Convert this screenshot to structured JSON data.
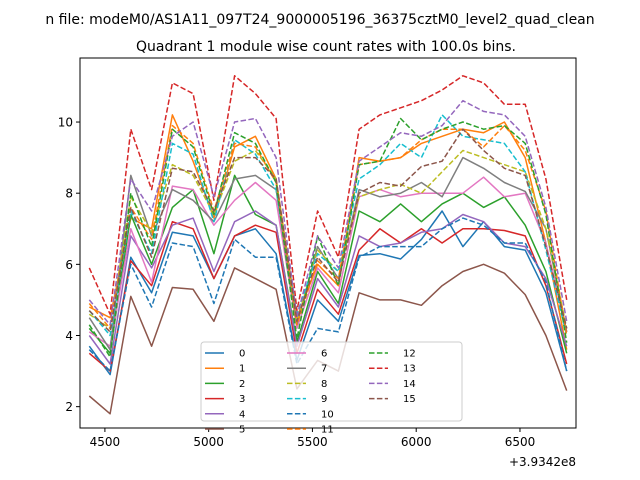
{
  "suptitle": "n file: modeM0/AS1A11_097T24_9000005196_36375cztM0_level2_quad_clean",
  "chart_data": {
    "type": "line",
    "title": "Quadrant 1 module wise count rates with 100.0s bins.",
    "xlabel": "",
    "ylabel": "",
    "x_offset_label": "+3.9342e8",
    "xlim": [
      4380,
      6770
    ],
    "ylim": [
      1.4,
      11.8
    ],
    "xticks": [
      4500,
      5000,
      5500,
      6000,
      6500
    ],
    "yticks": [
      2,
      4,
      6,
      8,
      10
    ],
    "grid": false,
    "legend_position": "bottom-center",
    "x": [
      4425,
      4525,
      4625,
      4725,
      4825,
      4925,
      5025,
      5125,
      5225,
      5325,
      5425,
      5525,
      5625,
      5725,
      5825,
      5925,
      6025,
      6125,
      6225,
      6325,
      6425,
      6525,
      6625,
      6725
    ],
    "series": [
      {
        "name": "0",
        "color": "#1f77b4",
        "dash": "solid",
        "values": [
          3.7,
          2.9,
          6.2,
          5.2,
          6.9,
          6.8,
          5.6,
          6.8,
          7.0,
          6.3,
          3.3,
          5.0,
          4.4,
          6.25,
          6.3,
          6.15,
          6.7,
          7.5,
          6.5,
          7.2,
          6.5,
          6.4,
          5.2,
          3.0
        ]
      },
      {
        "name": "1",
        "color": "#ff7f0e",
        "dash": "solid",
        "values": [
          4.8,
          4.5,
          7.3,
          7.0,
          10.2,
          8.9,
          7.3,
          9.3,
          9.6,
          8.4,
          4.5,
          6.0,
          5.4,
          9.0,
          8.9,
          9.0,
          9.4,
          9.6,
          9.8,
          9.7,
          10.0,
          9.0,
          6.6,
          3.6
        ]
      },
      {
        "name": "2",
        "color": "#2ca02c",
        "dash": "solid",
        "values": [
          4.2,
          3.5,
          7.4,
          6.0,
          7.6,
          8.1,
          6.3,
          8.5,
          7.4,
          7.1,
          3.8,
          5.8,
          4.9,
          7.5,
          7.2,
          7.7,
          7.2,
          7.7,
          8.0,
          7.6,
          7.9,
          7.1,
          5.8,
          3.5
        ]
      },
      {
        "name": "3",
        "color": "#d62728",
        "dash": "solid",
        "values": [
          3.5,
          3.0,
          6.1,
          5.4,
          7.2,
          7.0,
          5.6,
          6.8,
          7.1,
          6.9,
          3.5,
          5.3,
          4.6,
          6.4,
          7.0,
          6.6,
          7.0,
          6.6,
          7.0,
          7.0,
          6.95,
          6.8,
          5.4,
          3.2
        ]
      },
      {
        "name": "4",
        "color": "#9467bd",
        "dash": "solid",
        "values": [
          4.0,
          3.2,
          6.8,
          5.9,
          7.1,
          7.3,
          5.8,
          7.2,
          7.5,
          7.1,
          3.7,
          5.6,
          4.8,
          6.8,
          6.5,
          6.6,
          6.9,
          7.0,
          7.4,
          7.2,
          6.6,
          6.5,
          5.6,
          3.7
        ]
      },
      {
        "name": "5",
        "color": "#8c564b",
        "dash": "solid",
        "values": [
          2.3,
          1.8,
          5.1,
          3.7,
          5.35,
          5.3,
          4.4,
          5.9,
          5.6,
          5.3,
          2.5,
          3.3,
          3.0,
          5.2,
          5.0,
          5.0,
          4.85,
          5.4,
          5.8,
          6.0,
          5.75,
          5.15,
          4.0,
          2.45
        ]
      },
      {
        "name": "6",
        "color": "#e377c2",
        "dash": "solid",
        "values": [
          4.1,
          3.7,
          7.0,
          5.5,
          8.2,
          8.1,
          7.1,
          7.8,
          8.3,
          7.8,
          4.2,
          5.9,
          5.2,
          7.9,
          8.1,
          7.9,
          8.0,
          8.0,
          8.0,
          8.45,
          7.9,
          8.0,
          6.6,
          4.1
        ]
      },
      {
        "name": "7",
        "color": "#7f7f7f",
        "dash": "solid",
        "values": [
          4.5,
          3.6,
          8.5,
          6.8,
          8.1,
          7.8,
          7.2,
          8.4,
          8.5,
          8.1,
          4.3,
          6.5,
          5.6,
          8.1,
          7.9,
          8.0,
          8.3,
          7.9,
          9.0,
          8.7,
          8.3,
          8.05,
          7.0,
          4.1
        ]
      },
      {
        "name": "8",
        "color": "#bcbd22",
        "dash": "dashed",
        "values": [
          4.6,
          4.2,
          7.9,
          6.9,
          8.8,
          8.5,
          7.4,
          8.9,
          9.2,
          8.4,
          4.4,
          6.4,
          5.8,
          7.9,
          8.1,
          8.25,
          8.0,
          8.6,
          9.2,
          9.0,
          8.8,
          8.6,
          7.0,
          4.2
        ]
      },
      {
        "name": "9",
        "color": "#17becf",
        "dash": "dashed",
        "values": [
          4.7,
          4.0,
          7.5,
          6.3,
          9.4,
          9.1,
          7.2,
          9.5,
          9.1,
          8.1,
          4.6,
          6.3,
          5.8,
          8.4,
          8.8,
          9.4,
          9.0,
          10.2,
          9.6,
          9.5,
          9.4,
          8.6,
          6.4,
          4.0
        ]
      },
      {
        "name": "10",
        "color": "#1f77b4",
        "dash": "dashed",
        "values": [
          3.6,
          3.0,
          6.0,
          4.8,
          6.6,
          6.5,
          4.9,
          6.7,
          6.2,
          6.2,
          3.2,
          4.2,
          4.1,
          6.2,
          6.5,
          6.5,
          6.5,
          7.0,
          7.3,
          7.1,
          6.6,
          6.6,
          5.5,
          3.0
        ]
      },
      {
        "name": "11",
        "color": "#ff7f0e",
        "dash": "dashed",
        "values": [
          4.9,
          4.2,
          7.6,
          6.7,
          9.9,
          9.4,
          7.5,
          9.4,
          9.3,
          8.3,
          4.3,
          6.1,
          5.6,
          8.8,
          8.9,
          9.0,
          9.5,
          9.8,
          9.8,
          9.3,
          9.9,
          9.2,
          7.5,
          4.0
        ]
      },
      {
        "name": "12",
        "color": "#2ca02c",
        "dash": "dashed",
        "values": [
          4.3,
          3.4,
          8.0,
          6.5,
          9.8,
          9.3,
          7.4,
          9.7,
          9.4,
          8.3,
          3.9,
          6.8,
          5.4,
          8.8,
          8.9,
          10.1,
          9.5,
          9.8,
          10.0,
          9.8,
          9.9,
          9.4,
          7.4,
          3.8
        ]
      },
      {
        "name": "13",
        "color": "#d62728",
        "dash": "dashed",
        "values": [
          5.9,
          4.6,
          9.8,
          8.1,
          11.1,
          10.8,
          7.8,
          11.3,
          10.8,
          10.1,
          4.7,
          7.5,
          6.2,
          9.8,
          10.2,
          10.4,
          10.6,
          10.9,
          11.3,
          11.1,
          10.5,
          10.5,
          8.4,
          5.0
        ]
      },
      {
        "name": "14",
        "color": "#9467bd",
        "dash": "dashed",
        "values": [
          5.0,
          4.3,
          8.4,
          7.5,
          9.6,
          10.0,
          7.9,
          10.0,
          10.1,
          9.0,
          4.5,
          6.8,
          5.9,
          8.9,
          9.3,
          9.7,
          9.6,
          9.9,
          10.6,
          10.3,
          10.2,
          9.6,
          7.6,
          4.4
        ]
      },
      {
        "name": "15",
        "color": "#8c564b",
        "dash": "dashed",
        "values": [
          4.7,
          4.1,
          7.6,
          6.2,
          8.7,
          8.6,
          7.5,
          9.0,
          9.0,
          8.4,
          4.4,
          6.2,
          5.5,
          8.0,
          8.3,
          8.2,
          8.75,
          8.9,
          9.8,
          9.2,
          8.7,
          8.5,
          6.5,
          4.2
        ]
      }
    ]
  }
}
